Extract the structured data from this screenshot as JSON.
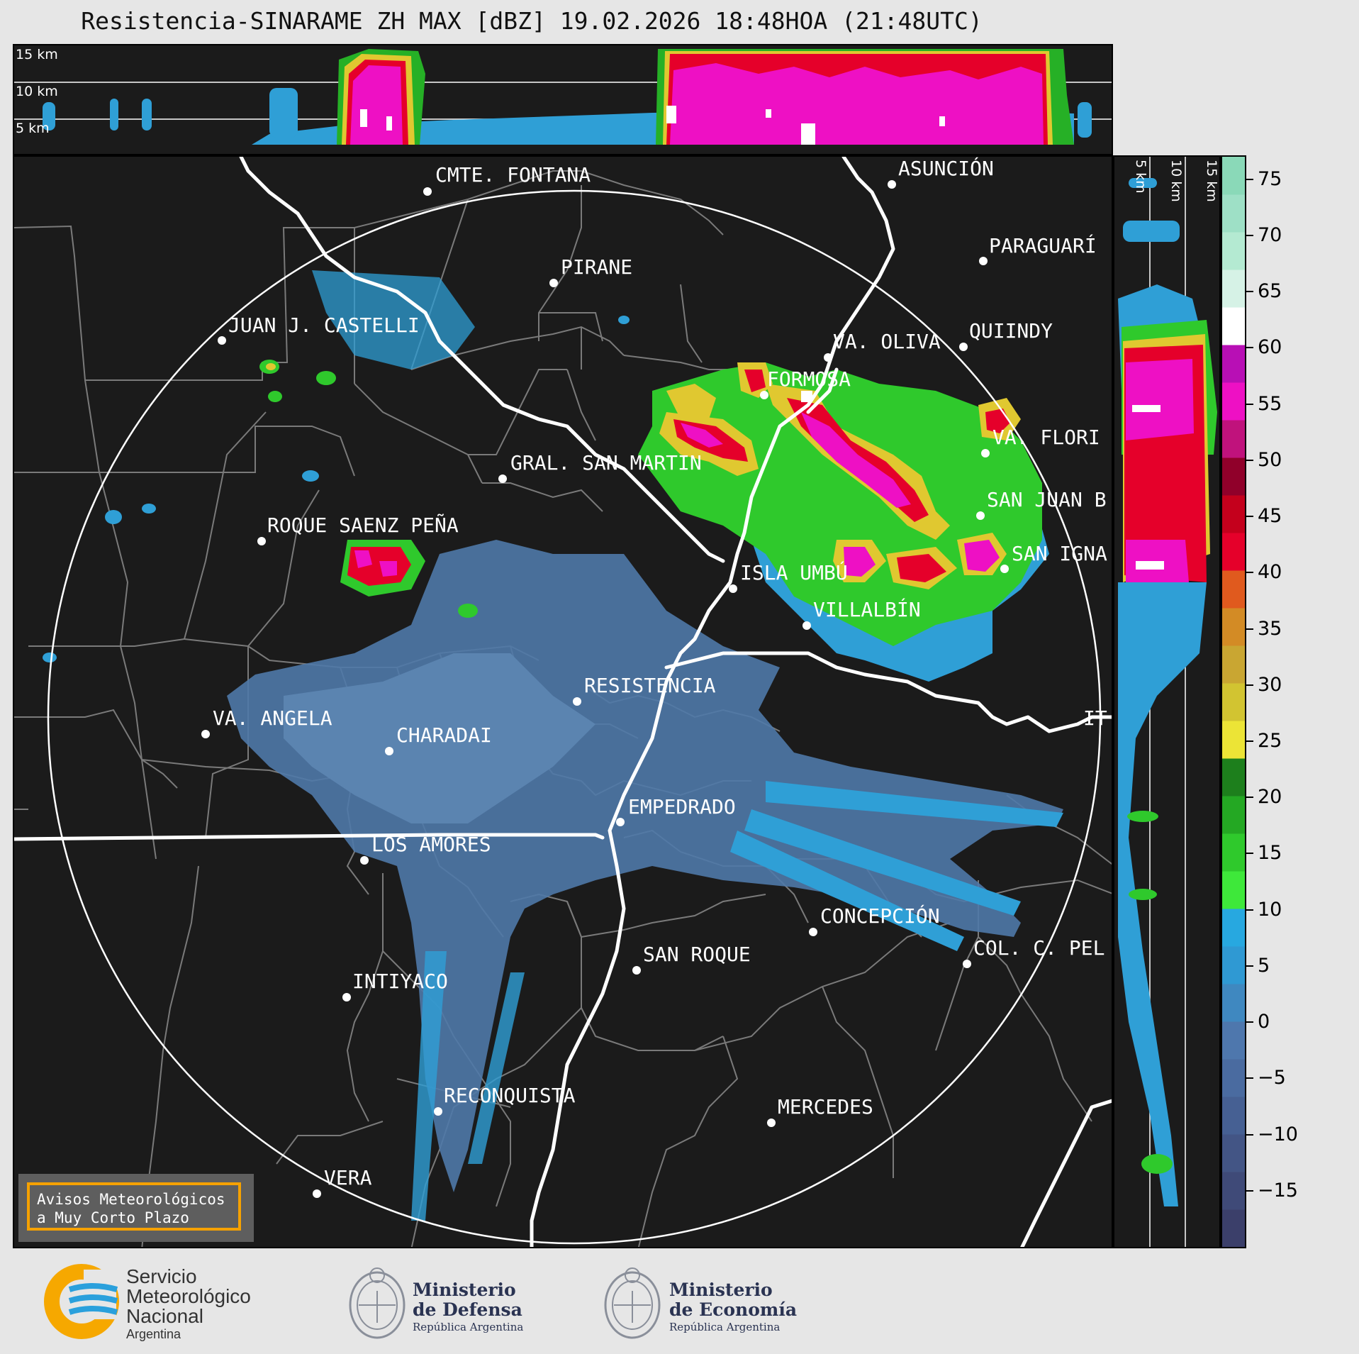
{
  "title": "Resistencia-SINARAME ZH MAX [dBZ] 19.02.2026 18:48HOA (21:48UTC)",
  "top_panel_heights": [
    "15 km",
    "10 km",
    "5 km"
  ],
  "side_panel_heights": [
    "5 km",
    "10 km",
    "15 km"
  ],
  "cities": [
    {
      "name": "CMTE. FONTANA"
    },
    {
      "name": "ASUNCIÓN"
    },
    {
      "name": "PIRANE"
    },
    {
      "name": "PARAGUARÍ"
    },
    {
      "name": "JUAN J. CASTELLI"
    },
    {
      "name": "VA. OLIVA"
    },
    {
      "name": "QUIINDY"
    },
    {
      "name": "FORMOSA"
    },
    {
      "name": "VA. FLORI"
    },
    {
      "name": "GRAL. SAN MARTIN"
    },
    {
      "name": "SAN JUAN B"
    },
    {
      "name": "ROQUE SAENZ PEÑA"
    },
    {
      "name": "SAN IGNA"
    },
    {
      "name": "ISLA UMBÚ"
    },
    {
      "name": "VILLALBÍN"
    },
    {
      "name": "RESISTENCIA"
    },
    {
      "name": "VA. ANGELA"
    },
    {
      "name": "CHARADAI"
    },
    {
      "name": "IT"
    },
    {
      "name": "EMPEDRADO"
    },
    {
      "name": "LOS AMORES"
    },
    {
      "name": "CONCEPCIÓN"
    },
    {
      "name": "SAN ROQUE"
    },
    {
      "name": "COL. C. PEL"
    },
    {
      "name": "INTIYACO"
    },
    {
      "name": "RECONQUISTA"
    },
    {
      "name": "MERCEDES"
    },
    {
      "name": "VERA"
    }
  ],
  "colorbar": {
    "unit": "dBZ",
    "ticks": [
      "75",
      "70",
      "65",
      "60",
      "55",
      "50",
      "45",
      "40",
      "35",
      "30",
      "25",
      "20",
      "15",
      "10",
      "5",
      "0",
      "−5",
      "−10",
      "−15"
    ],
    "range": [
      -20,
      77
    ],
    "colors": [
      "#3b3f6a",
      "#3f4a78",
      "#435585",
      "#466093",
      "#4a6ba0",
      "#4e77ad",
      "#3f88c0",
      "#2f99d3",
      "#27a8e0",
      "#3ee83a",
      "#2fc92c",
      "#24a823",
      "#1d7f1c",
      "#ece436",
      "#d2c431",
      "#c9a632",
      "#d38b25",
      "#e05a1e",
      "#e5002a",
      "#c4001c",
      "#90002a",
      "#c0127c",
      "#ee10c4",
      "#b80fb5",
      "#ffffff",
      "#d6f2e6",
      "#b4ead2",
      "#9ee0c6",
      "#8ad9b8"
    ]
  },
  "avisos": {
    "line1": "Avisos Meteorológicos",
    "line2": "a Muy Corto Plazo"
  },
  "logos": {
    "smn": {
      "line1": "Servicio",
      "line2": "Meteorológico",
      "line3": "Nacional",
      "line4": "Argentina"
    },
    "defensa": {
      "line1": "Ministerio",
      "line2": "de Defensa",
      "line3": "República Argentina"
    },
    "economia": {
      "line1": "Ministerio",
      "line2": "de Economía",
      "line3": "República Argentina"
    }
  }
}
